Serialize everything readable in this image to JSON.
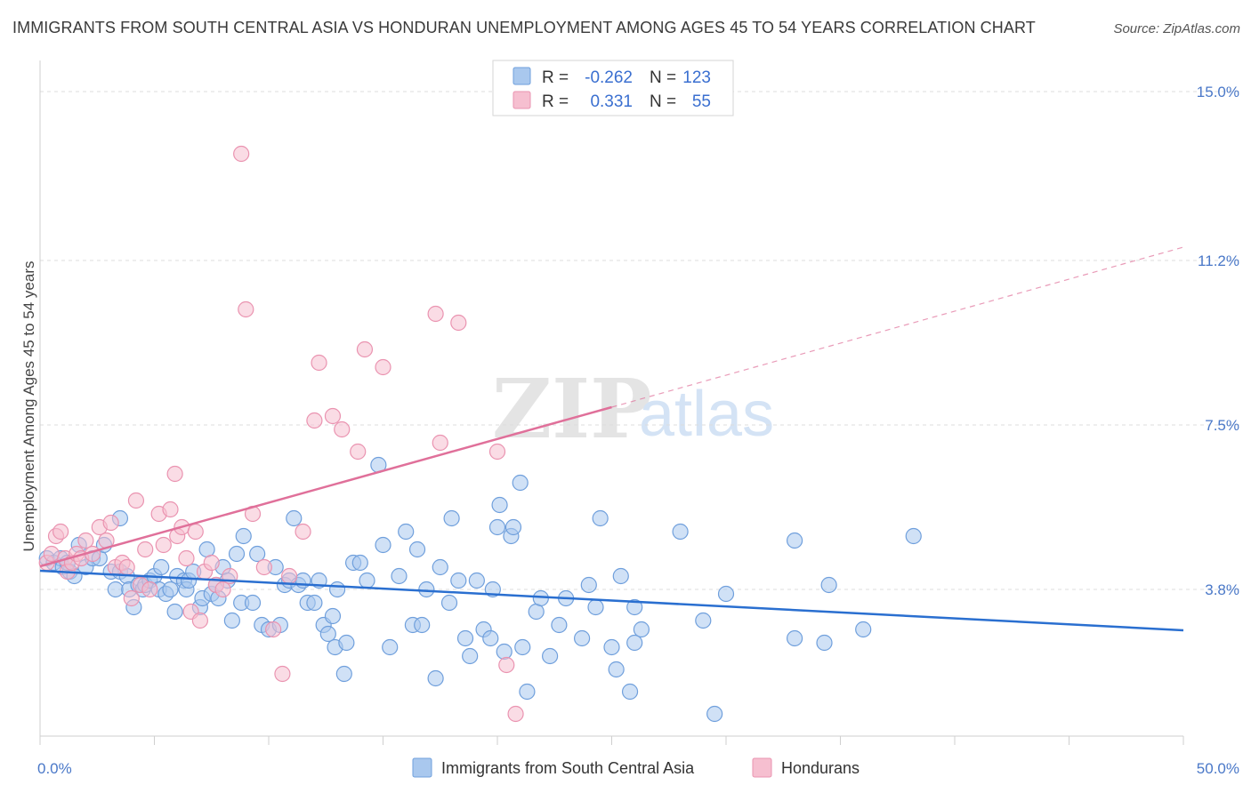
{
  "title": "IMMIGRANTS FROM SOUTH CENTRAL ASIA VS HONDURAN UNEMPLOYMENT AMONG AGES 45 TO 54 YEARS CORRELATION CHART",
  "source": "Source: ZipAtlas.com",
  "watermark": {
    "zip": "ZIP",
    "atlas": "atlas"
  },
  "legend": {
    "rows": [
      {
        "r_label": "R =",
        "r_value": "-0.262",
        "n_label": "N =",
        "n_value": "123"
      },
      {
        "r_label": "R =",
        "r_value": "0.331",
        "n_label": "N =",
        "n_value": "55"
      }
    ]
  },
  "bottom_legend": [
    "Immigrants from South Central Asia",
    "Hondurans"
  ],
  "colors": {
    "blue_fill": "#a9c8ee",
    "blue_stroke": "#6f9fdc",
    "blue_line": "#2a6fd0",
    "pink_fill": "#f6bfd0",
    "pink_stroke": "#ea93b0",
    "pink_line": "#e0709a",
    "tick": "#4a78c8",
    "grid": "#dddddd"
  },
  "chart_data": {
    "type": "scatter",
    "title": "IMMIGRANTS FROM SOUTH CENTRAL ASIA VS HONDURAN UNEMPLOYMENT AMONG AGES 45 TO 54 YEARS CORRELATION CHART",
    "xlabel": "",
    "ylabel": "Unemployment Among Ages 45 to 54 years",
    "xlim": [
      0,
      50
    ],
    "ylim": [
      0.5,
      15.5
    ],
    "x_tick_labels": [
      {
        "value": 0,
        "label": "0.0%"
      },
      {
        "value": 50,
        "label": "50.0%"
      }
    ],
    "y_tick_labels": [
      {
        "value": 3.8,
        "label": "3.8%"
      },
      {
        "value": 7.5,
        "label": "7.5%"
      },
      {
        "value": 11.2,
        "label": "11.2%"
      },
      {
        "value": 15.0,
        "label": "15.0%"
      }
    ],
    "grid": true,
    "legend_position": "top-center",
    "series": [
      {
        "name": "Immigrants from South Central Asia",
        "r": -0.262,
        "n": 123,
        "trend": {
          "x0": 0,
          "y0": 4.22,
          "x1": 50,
          "y1": 2.88
        },
        "points": [
          [
            0.3,
            4.5
          ],
          [
            0.6,
            4.4
          ],
          [
            0.9,
            4.5
          ],
          [
            1.0,
            4.3
          ],
          [
            1.3,
            4.2
          ],
          [
            1.2,
            4.4
          ],
          [
            1.5,
            4.1
          ],
          [
            1.7,
            4.8
          ],
          [
            2.0,
            4.3
          ],
          [
            2.3,
            4.5
          ],
          [
            2.6,
            4.5
          ],
          [
            2.8,
            4.8
          ],
          [
            3.1,
            4.2
          ],
          [
            3.3,
            3.8
          ],
          [
            3.5,
            4.2
          ],
          [
            3.5,
            5.4
          ],
          [
            3.8,
            4.1
          ],
          [
            3.9,
            3.8
          ],
          [
            4.1,
            3.4
          ],
          [
            4.3,
            3.9
          ],
          [
            4.5,
            3.8
          ],
          [
            4.6,
            3.9
          ],
          [
            4.8,
            4.0
          ],
          [
            5.0,
            4.1
          ],
          [
            5.2,
            3.8
          ],
          [
            5.3,
            4.3
          ],
          [
            5.5,
            3.7
          ],
          [
            5.7,
            3.8
          ],
          [
            5.9,
            3.3
          ],
          [
            6.0,
            4.1
          ],
          [
            6.3,
            4.0
          ],
          [
            6.4,
            3.8
          ],
          [
            6.5,
            4.0
          ],
          [
            6.7,
            4.2
          ],
          [
            7.0,
            3.4
          ],
          [
            7.1,
            3.6
          ],
          [
            7.3,
            4.7
          ],
          [
            7.5,
            3.7
          ],
          [
            7.7,
            3.9
          ],
          [
            7.8,
            3.6
          ],
          [
            8.0,
            4.3
          ],
          [
            8.2,
            4.0
          ],
          [
            8.4,
            3.1
          ],
          [
            8.6,
            4.6
          ],
          [
            8.8,
            3.5
          ],
          [
            8.9,
            5.0
          ],
          [
            9.3,
            3.5
          ],
          [
            9.5,
            4.6
          ],
          [
            9.7,
            3.0
          ],
          [
            10.0,
            2.9
          ],
          [
            10.3,
            4.3
          ],
          [
            10.5,
            3.0
          ],
          [
            10.7,
            3.9
          ],
          [
            10.9,
            4.0
          ],
          [
            11.1,
            5.4
          ],
          [
            11.3,
            3.9
          ],
          [
            11.5,
            4.0
          ],
          [
            11.7,
            3.5
          ],
          [
            12.0,
            3.5
          ],
          [
            12.2,
            4.0
          ],
          [
            12.4,
            3.0
          ],
          [
            12.6,
            2.8
          ],
          [
            12.8,
            3.2
          ],
          [
            12.9,
            2.5
          ],
          [
            13.0,
            3.8
          ],
          [
            13.3,
            1.9
          ],
          [
            13.4,
            2.6
          ],
          [
            13.7,
            4.4
          ],
          [
            14.0,
            4.4
          ],
          [
            14.3,
            4.0
          ],
          [
            14.8,
            6.6
          ],
          [
            15.0,
            4.8
          ],
          [
            15.3,
            2.5
          ],
          [
            15.7,
            4.1
          ],
          [
            16.0,
            5.1
          ],
          [
            16.3,
            3.0
          ],
          [
            16.5,
            4.7
          ],
          [
            16.7,
            3.0
          ],
          [
            16.9,
            3.8
          ],
          [
            17.3,
            1.8
          ],
          [
            17.5,
            4.3
          ],
          [
            17.9,
            3.5
          ],
          [
            18.0,
            5.4
          ],
          [
            18.3,
            4.0
          ],
          [
            18.6,
            2.7
          ],
          [
            18.8,
            2.3
          ],
          [
            19.1,
            4.0
          ],
          [
            19.4,
            2.9
          ],
          [
            19.7,
            2.7
          ],
          [
            19.8,
            3.8
          ],
          [
            20.0,
            5.2
          ],
          [
            20.1,
            5.7
          ],
          [
            20.3,
            2.4
          ],
          [
            20.6,
            5.0
          ],
          [
            20.7,
            5.2
          ],
          [
            21.0,
            6.2
          ],
          [
            21.1,
            2.5
          ],
          [
            21.3,
            1.5
          ],
          [
            21.7,
            3.3
          ],
          [
            21.9,
            3.6
          ],
          [
            22.3,
            2.3
          ],
          [
            22.7,
            3.0
          ],
          [
            23.0,
            3.6
          ],
          [
            23.7,
            2.7
          ],
          [
            24.0,
            3.9
          ],
          [
            24.3,
            3.4
          ],
          [
            24.5,
            5.4
          ],
          [
            25.0,
            2.5
          ],
          [
            25.2,
            2.0
          ],
          [
            25.4,
            4.1
          ],
          [
            26.0,
            2.6
          ],
          [
            26.0,
            3.4
          ],
          [
            25.8,
            1.5
          ],
          [
            26.3,
            2.9
          ],
          [
            28.0,
            5.1
          ],
          [
            29.0,
            3.1
          ],
          [
            29.5,
            1.0
          ],
          [
            30.0,
            3.7
          ],
          [
            33.0,
            4.9
          ],
          [
            33.0,
            2.7
          ],
          [
            34.3,
            2.6
          ],
          [
            34.5,
            3.9
          ],
          [
            36.0,
            2.9
          ],
          [
            38.2,
            5.0
          ]
        ]
      },
      {
        "name": "Hondurans",
        "r": 0.331,
        "n": 55,
        "trend": {
          "x0": 0,
          "y0": 4.32,
          "x1": 25,
          "y1": 7.9
        },
        "trend_dashed_to": {
          "x": 50,
          "y": 11.5
        },
        "points": [
          [
            0.3,
            4.4
          ],
          [
            0.5,
            4.6
          ],
          [
            0.7,
            5.0
          ],
          [
            0.9,
            5.1
          ],
          [
            1.1,
            4.5
          ],
          [
            1.2,
            4.2
          ],
          [
            1.4,
            4.4
          ],
          [
            1.6,
            4.6
          ],
          [
            1.8,
            4.5
          ],
          [
            2.0,
            4.9
          ],
          [
            2.3,
            4.6
          ],
          [
            2.6,
            5.2
          ],
          [
            2.9,
            4.9
          ],
          [
            3.1,
            5.3
          ],
          [
            3.3,
            4.3
          ],
          [
            3.6,
            4.4
          ],
          [
            3.8,
            4.3
          ],
          [
            4.0,
            3.6
          ],
          [
            4.2,
            5.8
          ],
          [
            4.4,
            3.9
          ],
          [
            4.6,
            4.7
          ],
          [
            4.8,
            3.8
          ],
          [
            5.2,
            5.5
          ],
          [
            5.4,
            4.8
          ],
          [
            5.7,
            5.6
          ],
          [
            5.9,
            6.4
          ],
          [
            6.0,
            5.0
          ],
          [
            6.2,
            5.2
          ],
          [
            6.4,
            4.5
          ],
          [
            6.6,
            3.3
          ],
          [
            6.8,
            5.1
          ],
          [
            7.0,
            3.1
          ],
          [
            7.2,
            4.2
          ],
          [
            7.5,
            4.4
          ],
          [
            7.7,
            3.9
          ],
          [
            8.0,
            3.8
          ],
          [
            8.3,
            4.1
          ],
          [
            8.8,
            13.6
          ],
          [
            9.0,
            10.1
          ],
          [
            9.3,
            5.5
          ],
          [
            9.8,
            4.3
          ],
          [
            10.2,
            2.9
          ],
          [
            10.6,
            1.9
          ],
          [
            10.9,
            4.1
          ],
          [
            11.5,
            5.1
          ],
          [
            12.0,
            7.6
          ],
          [
            12.2,
            8.9
          ],
          [
            12.8,
            7.7
          ],
          [
            13.2,
            7.4
          ],
          [
            13.9,
            6.9
          ],
          [
            14.2,
            9.2
          ],
          [
            15.0,
            8.8
          ],
          [
            17.3,
            10.0
          ],
          [
            17.5,
            7.1
          ],
          [
            18.3,
            9.8
          ],
          [
            20.0,
            6.9
          ],
          [
            20.4,
            2.1
          ],
          [
            20.8,
            1.0
          ]
        ]
      }
    ]
  }
}
